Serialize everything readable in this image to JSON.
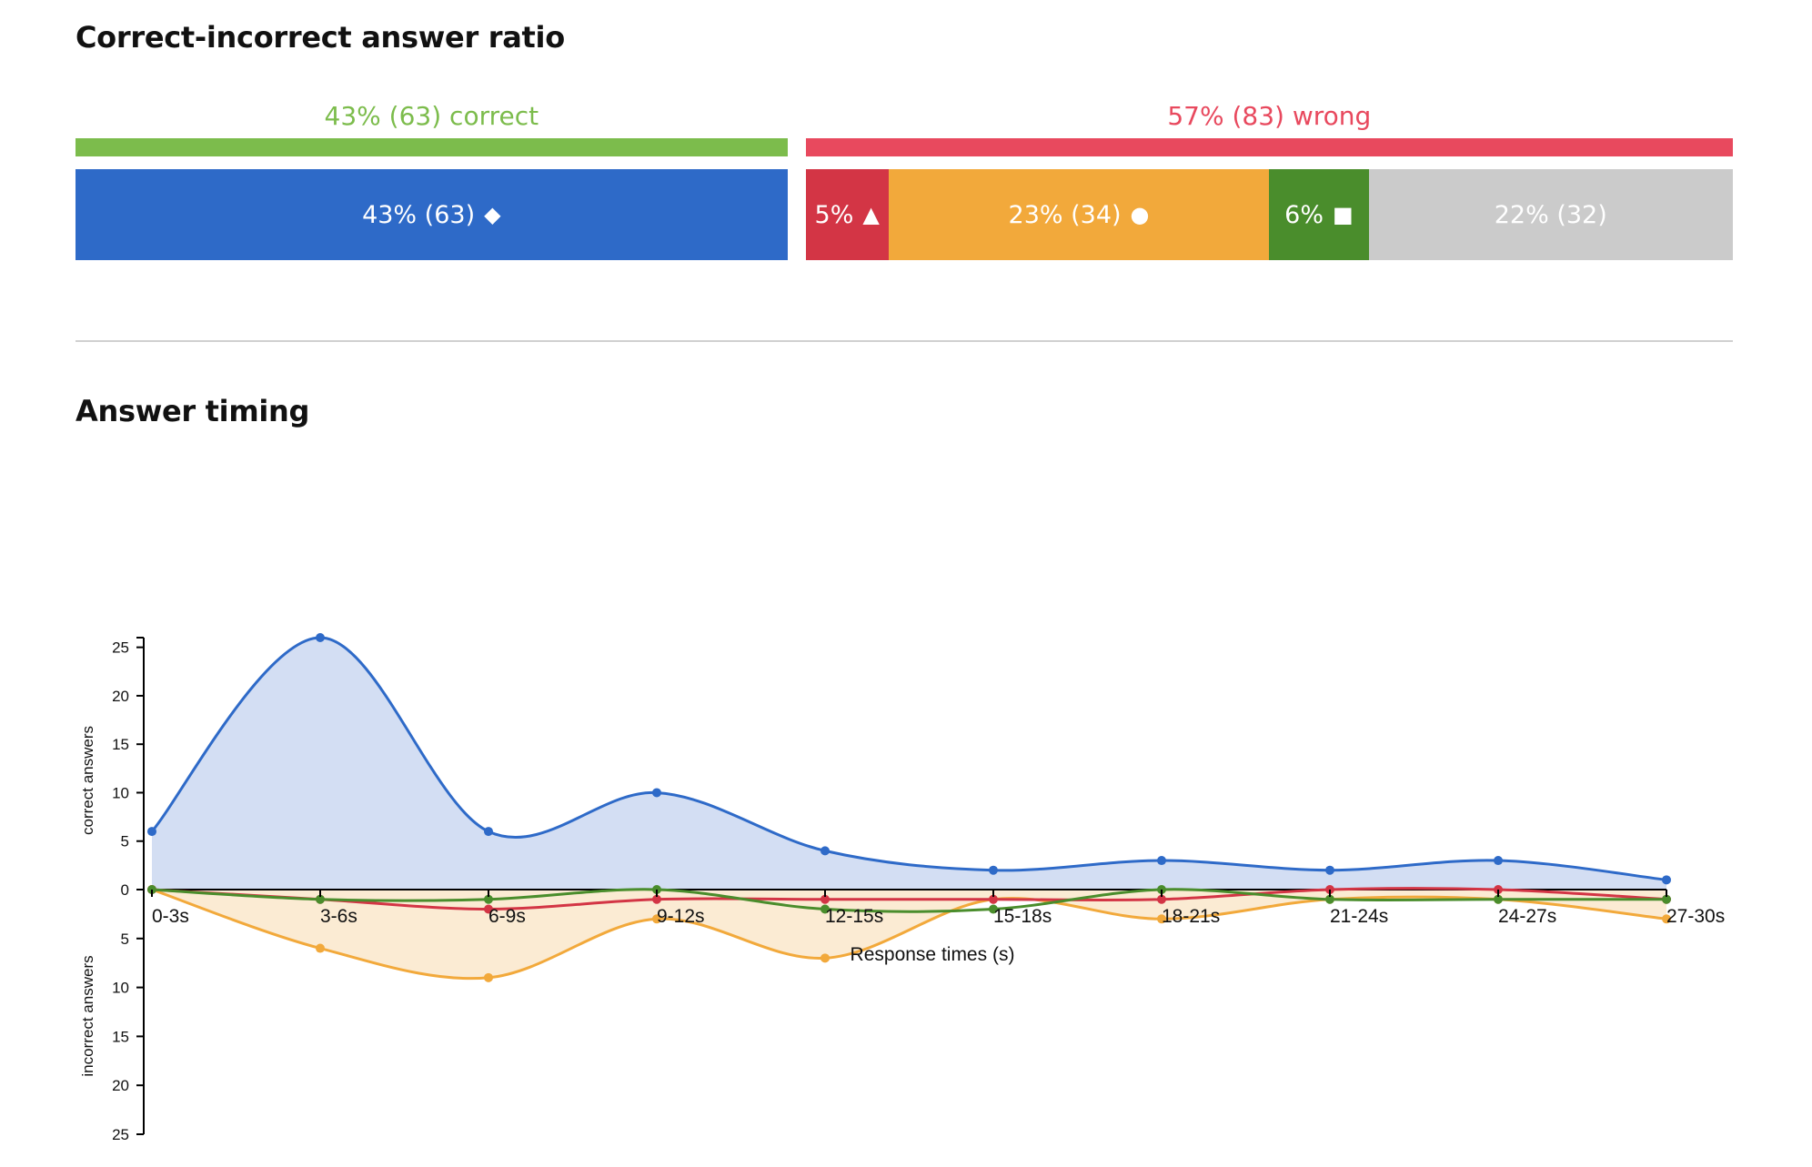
{
  "ratio_section": {
    "title": "Correct-incorrect answer ratio",
    "correct_label": "43% (63) correct",
    "wrong_label": "57% (83) wrong",
    "colors": {
      "correct": "#7cbc4c",
      "wrong": "#e8495e"
    },
    "segments": [
      {
        "label": "43% (63)",
        "symbol": "◆",
        "share": 43,
        "color": "#2e6ac8"
      },
      {
        "label": "5%",
        "symbol": "▲",
        "share": 5,
        "color": "#d33545"
      },
      {
        "label": "23% (34)",
        "symbol": "●",
        "share": 23,
        "color": "#f2a93b"
      },
      {
        "label": "6%",
        "symbol": "■",
        "share": 6,
        "color": "#4a8d2c"
      },
      {
        "label": "22% (32)",
        "symbol": "",
        "share": 22,
        "color": "#cbcbcb"
      }
    ]
  },
  "timing_section": {
    "title": "Answer timing"
  },
  "chart_data": {
    "type": "area",
    "categories": [
      "0-3s",
      "3-6s",
      "6-9s",
      "9-12s",
      "12-15s",
      "15-18s",
      "18-21s",
      "21-24s",
      "24-27s",
      "27-30s"
    ],
    "xlabel": "Response times (s)",
    "ylabel_top": "correct answers",
    "ylabel_bottom": "incorrect answers",
    "y_ticks_top": [
      0,
      5,
      10,
      15,
      20,
      25
    ],
    "y_ticks_bottom": [
      5,
      10,
      15,
      20,
      25
    ],
    "ylim_top": [
      0,
      26
    ],
    "ylim_bottom": [
      0,
      25
    ],
    "series": [
      {
        "direction": "up",
        "color": "#2e6ac8",
        "fill": "#d3def3",
        "values": [
          6,
          26,
          6,
          10,
          4,
          2,
          3,
          2,
          3,
          1
        ]
      },
      {
        "direction": "down",
        "color": "#f2a93b",
        "fill": "#fbebd3",
        "values": [
          0,
          6,
          9,
          3,
          7,
          1,
          3,
          1,
          1,
          3
        ]
      },
      {
        "direction": "down",
        "color": "#d33545",
        "fill": "none",
        "values": [
          0,
          1,
          2,
          1,
          1,
          1,
          1,
          0,
          0,
          1
        ]
      },
      {
        "direction": "down",
        "color": "#4a8d2c",
        "fill": "none",
        "values": [
          0,
          1,
          1,
          0,
          2,
          2,
          0,
          1,
          1,
          1
        ]
      }
    ]
  }
}
